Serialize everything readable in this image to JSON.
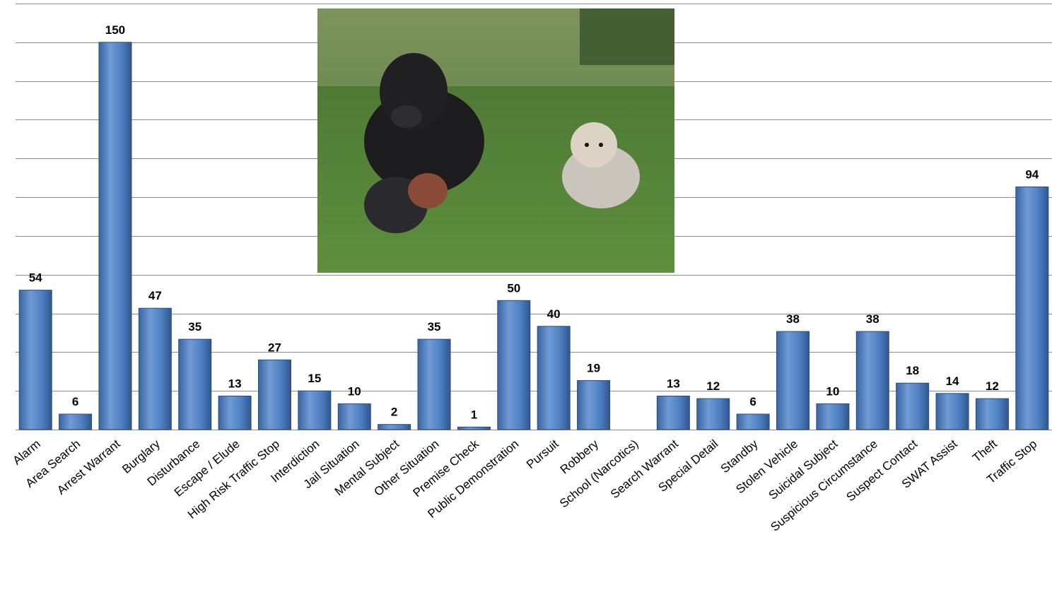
{
  "chart_data": {
    "type": "bar",
    "categories": [
      "Alarm",
      "Area Search",
      "Arrest Warrant",
      "Burglary",
      "Disturbance",
      "Escape / Elude",
      "High Risk Traffic Stop",
      "Interdiction",
      "Jail Situation",
      "Mental Subject",
      "Other Situation",
      "Premise Check",
      "Public Demonstration",
      "Pursuit",
      "Robbery",
      "School (Narcotics)",
      "Search Warrant",
      "Special Detail",
      "Standby",
      "Stolen Vehicle",
      "Suicidal Subject",
      "Suspicious Circumstance",
      "Suspect Contact",
      "SWAT Assist",
      "Theft",
      "Traffic Stop"
    ],
    "values": [
      54,
      6,
      150,
      47,
      35,
      13,
      27,
      15,
      10,
      2,
      35,
      1,
      50,
      40,
      19,
      null,
      13,
      12,
      6,
      38,
      10,
      38,
      18,
      14,
      12,
      94
    ],
    "color": "#4f81bd",
    "ylim": [
      0,
      165
    ],
    "yticks": [
      0,
      15,
      30,
      45,
      60,
      75,
      90,
      105,
      120,
      135,
      150,
      165
    ],
    "grid": true
  }
}
